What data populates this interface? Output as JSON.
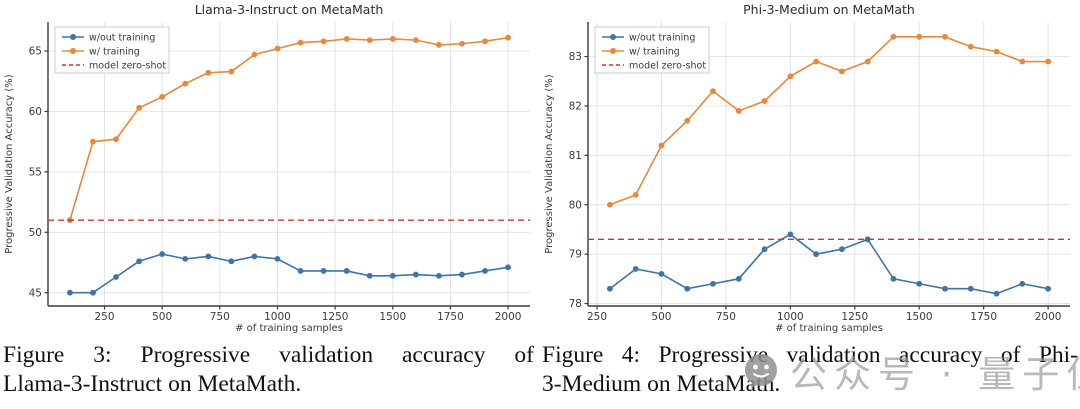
{
  "figures": [
    {
      "caption_line1": "Figure 3: Progressive validation accuracy of",
      "caption_line2": "Llama-3-Instruct on MetaMath."
    },
    {
      "caption_line1": "Figure 4: Progressive validation accuracy of Phi-",
      "caption_line2": "3-Medium on MetaMath."
    }
  ],
  "watermark": {
    "icon": "wechat-icon",
    "text": "公众号 · 量子位",
    "icon_color": "#8f8f8f",
    "text_color": "#9b9b9b"
  },
  "colors": {
    "without_training": "#3e74a8",
    "with_training": "#e8883c",
    "zero_shot": "#d03030",
    "grid": "#e4e4e4",
    "spine": "#3a3a3a",
    "tick_label": "#3a3a3a",
    "title": "#2e2e2e"
  },
  "chart_data": [
    {
      "type": "line",
      "title": "Llama-3-Instruct on MetaMath",
      "xlabel": "# of training samples",
      "ylabel": "Progressive Validation Accuracy (%)",
      "grid": true,
      "legend_position": "upper left",
      "xlim": [
        5,
        2095
      ],
      "ylim": [
        43.9,
        67.4
      ],
      "xticks": [
        250,
        500,
        750,
        1000,
        1250,
        1500,
        1750,
        2000
      ],
      "yticks": [
        45,
        50,
        55,
        60,
        65
      ],
      "x": [
        100,
        200,
        300,
        400,
        500,
        600,
        700,
        800,
        900,
        1000,
        1100,
        1200,
        1300,
        1400,
        1500,
        1600,
        1700,
        1800,
        1900,
        2000
      ],
      "series": [
        {
          "name": "w/out training",
          "style": "line-marker",
          "color": "#3e74a8",
          "values": [
            45.0,
            45.0,
            46.3,
            47.6,
            48.2,
            47.8,
            48.0,
            47.6,
            48.0,
            47.8,
            46.8,
            46.8,
            46.8,
            46.4,
            46.4,
            46.5,
            46.4,
            46.5,
            46.8,
            47.1
          ]
        },
        {
          "name": "w/ training",
          "style": "line-marker",
          "color": "#e8883c",
          "values": [
            51.0,
            57.5,
            57.7,
            60.3,
            61.2,
            62.3,
            63.2,
            63.3,
            64.7,
            65.2,
            65.7,
            65.8,
            66.0,
            65.9,
            66.0,
            65.9,
            65.5,
            65.6,
            65.8,
            66.1
          ]
        },
        {
          "name": "model zero-shot",
          "style": "dashed",
          "color": "#d03030",
          "value": 51.0
        }
      ]
    },
    {
      "type": "line",
      "title": "Phi-3-Medium on MetaMath",
      "xlabel": "# of training samples",
      "ylabel": "Progressive Validation Accuracy (%)",
      "grid": true,
      "legend_position": "upper left",
      "xlim": [
        215,
        2085
      ],
      "ylim": [
        77.95,
        83.7
      ],
      "xticks": [
        250,
        500,
        750,
        1000,
        1250,
        1500,
        1750,
        2000
      ],
      "yticks": [
        78,
        79,
        80,
        81,
        82,
        83
      ],
      "x": [
        300,
        400,
        500,
        600,
        700,
        800,
        900,
        1000,
        1100,
        1200,
        1300,
        1400,
        1500,
        1600,
        1700,
        1800,
        1900,
        2000
      ],
      "series": [
        {
          "name": "w/out training",
          "style": "line-marker",
          "color": "#3e74a8",
          "values": [
            78.3,
            78.7,
            78.6,
            78.3,
            78.4,
            78.5,
            79.1,
            79.4,
            79.0,
            79.1,
            79.3,
            78.5,
            78.4,
            78.3,
            78.3,
            78.2,
            78.4,
            78.3
          ]
        },
        {
          "name": "w/ training",
          "style": "line-marker",
          "color": "#e8883c",
          "values": [
            80.0,
            80.2,
            81.2,
            81.7,
            82.3,
            81.9,
            82.1,
            82.6,
            82.9,
            82.7,
            82.9,
            83.4,
            83.4,
            83.4,
            83.2,
            83.1,
            82.9,
            82.9
          ]
        },
        {
          "name": "model zero-shot",
          "style": "dashed",
          "color": "#d03030",
          "value": 79.3
        }
      ]
    }
  ]
}
